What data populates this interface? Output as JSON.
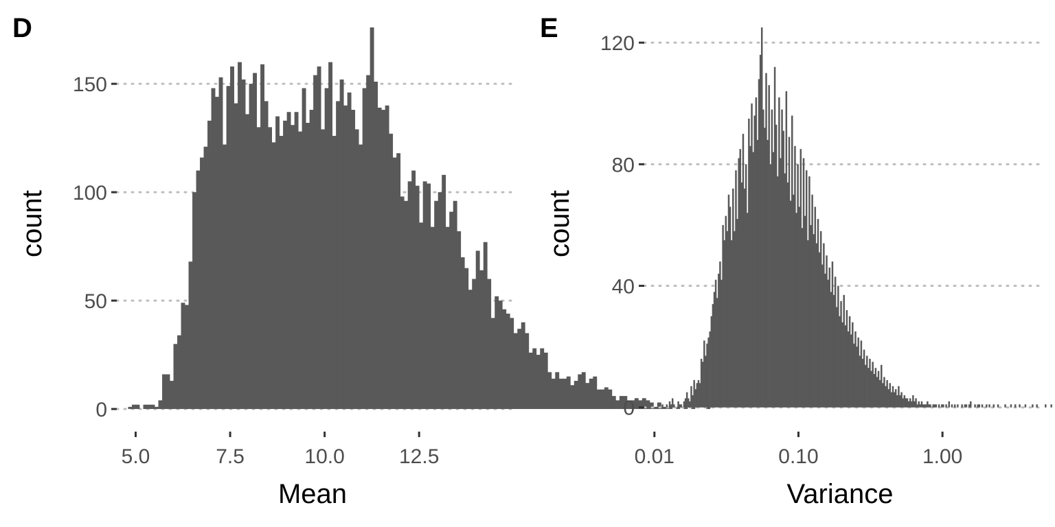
{
  "chart_data": [
    {
      "type": "bar",
      "panel_label": "D",
      "xlabel": "Mean",
      "ylabel": "count",
      "xlim": [
        4.5,
        14.95
      ],
      "ylim": [
        -6,
        176
      ],
      "x_ticks": [
        5.0,
        7.5,
        10.0,
        12.5
      ],
      "x_tick_labels": [
        "5.0",
        "7.5",
        "10.0",
        "12.5"
      ],
      "y_ticks": [
        0,
        50,
        100,
        150
      ],
      "y_tick_labels": [
        "0",
        "50",
        "100",
        "150"
      ],
      "grid": "horizontal-dotted",
      "bin_width": 0.1,
      "bin_start": 4.8,
      "values": [
        1,
        2,
        2,
        0,
        2,
        2,
        2,
        1,
        4,
        16,
        16,
        13,
        30,
        34,
        49,
        48,
        68,
        100,
        110,
        116,
        121,
        133,
        148,
        144,
        153,
        122,
        149,
        158,
        141,
        160,
        152,
        136,
        150,
        155,
        130,
        159,
        142,
        130,
        123,
        135,
        126,
        133,
        137,
        131,
        137,
        128,
        148,
        132,
        138,
        154,
        158,
        129,
        148,
        160,
        126,
        142,
        152,
        140,
        146,
        138,
        129,
        122,
        148,
        154,
        176,
        151,
        139,
        138,
        140,
        127,
        116,
        118,
        98,
        96,
        105,
        110,
        103,
        86,
        105,
        104,
        84,
        96,
        100,
        108,
        84,
        91,
        96,
        82,
        70,
        65,
        55,
        60,
        73,
        64,
        77,
        60,
        42,
        52,
        50,
        46,
        44,
        42,
        35,
        37,
        40,
        35,
        26,
        28,
        25,
        28,
        26,
        17,
        14,
        17,
        14,
        14,
        15,
        11,
        13,
        16,
        17,
        12,
        14,
        15,
        9,
        9,
        10,
        9,
        6,
        4,
        6,
        6,
        4,
        4,
        5,
        4,
        5,
        4,
        3,
        1,
        3,
        1,
        1,
        1,
        0,
        1,
        0,
        1,
        0,
        1,
        0,
        0,
        0,
        1
      ],
      "color": "#595959"
    },
    {
      "type": "bar",
      "panel_label": "E",
      "xlabel": "Variance",
      "ylabel": "count",
      "x_scale": "log10",
      "xlim": [
        0.0085,
        4.8
      ],
      "ylim": [
        -4.8,
        125
      ],
      "x_ticks": [
        0.01,
        0.1,
        1.0
      ],
      "x_tick_labels": [
        "0.01",
        "0.10",
        "1.00"
      ],
      "y_ticks": [
        0,
        40,
        80,
        120
      ],
      "y_tick_labels": [
        "0",
        "40",
        "80",
        "120"
      ],
      "grid": "horizontal-dotted",
      "log10_bin_width": 0.01,
      "log10_bin_start": -1.95,
      "values": [
        1,
        0,
        0,
        1,
        0,
        2,
        1,
        3,
        1,
        0,
        0,
        2,
        1,
        1,
        0,
        2,
        3,
        5,
        3,
        2,
        7,
        4,
        9,
        6,
        8,
        9,
        8,
        16,
        15,
        22,
        17,
        21,
        23,
        25,
        30,
        34,
        38,
        42,
        36,
        44,
        48,
        42,
        60,
        55,
        63,
        58,
        70,
        66,
        55,
        72,
        58,
        78,
        62,
        82,
        85,
        74,
        90,
        72,
        80,
        64,
        95,
        86,
        100,
        84,
        96,
        102,
        88,
        108,
        116,
        125,
        98,
        92,
        110,
        88,
        106,
        80,
        98,
        84,
        112,
        93,
        76,
        102,
        82,
        98,
        91,
        77,
        104,
        74,
        89,
        68,
        96,
        70,
        86,
        64,
        80,
        66,
        85,
        59,
        82,
        63,
        78,
        55,
        76,
        60,
        70,
        57,
        66,
        54,
        62,
        51,
        58,
        47,
        54,
        44,
        50,
        42,
        46,
        38,
        48,
        37,
        43,
        33,
        40,
        30,
        35,
        28,
        37,
        27,
        32,
        25,
        30,
        24,
        28,
        21,
        25,
        20,
        23,
        17,
        22,
        16,
        19,
        14,
        17,
        13,
        16,
        12,
        15,
        11,
        13,
        10,
        12,
        9,
        14,
        8,
        10,
        7,
        9,
        6,
        8,
        5,
        7,
        5,
        6,
        4,
        7,
        4,
        5,
        3,
        4,
        3,
        3,
        2,
        3,
        2,
        4,
        2,
        3,
        1,
        2,
        1,
        2,
        1,
        1,
        1,
        2,
        1,
        1,
        0,
        1,
        1,
        1,
        0,
        1,
        0,
        1,
        1,
        0,
        1,
        0,
        2,
        0,
        1,
        0,
        1,
        0,
        1,
        0,
        0,
        1,
        0,
        1,
        1,
        0,
        1,
        2,
        0,
        0,
        1,
        0,
        1,
        1,
        0,
        1,
        0,
        0,
        1,
        0,
        1,
        0,
        0,
        1,
        0,
        0,
        1,
        0,
        0,
        0,
        0,
        1,
        0,
        0,
        0,
        1,
        0,
        0,
        1,
        0,
        0,
        1,
        0,
        0,
        0,
        1,
        0,
        0,
        0,
        0,
        1,
        0,
        0,
        1,
        0,
        0,
        0,
        0,
        0,
        1,
        0,
        0,
        0,
        1,
        0,
        0,
        0,
        1,
        0,
        0,
        0,
        0,
        1,
        0,
        0,
        0,
        0,
        1,
        0,
        0,
        0,
        0,
        1,
        0,
        0,
        0,
        0,
        0,
        1,
        0,
        0,
        0,
        0,
        0,
        0,
        1,
        0,
        0,
        0,
        0,
        0,
        0,
        1,
        0,
        0,
        0,
        0,
        0,
        1,
        0,
        0,
        0,
        0,
        0,
        0,
        0,
        0,
        0,
        1
      ],
      "color": "#595959"
    }
  ]
}
